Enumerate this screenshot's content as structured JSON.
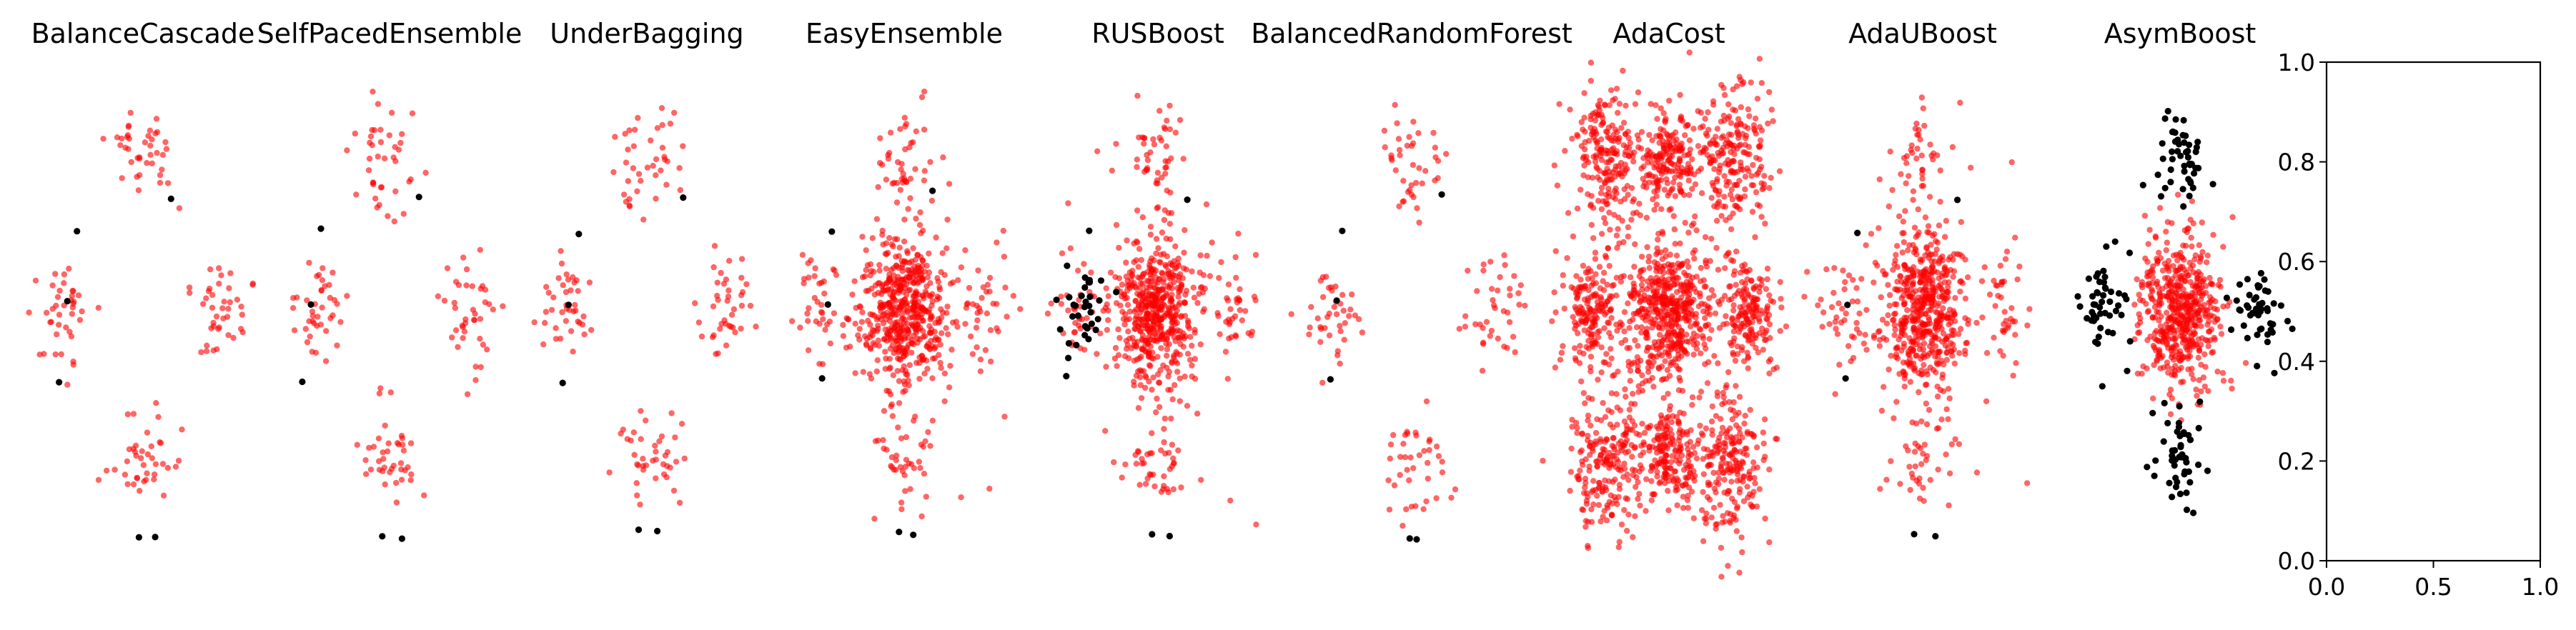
{
  "colors": {
    "kept_samples": "#ff0000",
    "discarded_samples": "#000000",
    "axes": "#000000"
  },
  "chart_data": [
    {
      "type": "scatter",
      "title": "BalanceCascade",
      "panel": 0,
      "seed": 11,
      "red_clusters": [
        "top",
        "left",
        "right",
        "bottom"
      ],
      "black_clusters": [
        "few"
      ],
      "black_scale": 1,
      "dense_center": false,
      "dense_corners": false,
      "stray_points": false
    },
    {
      "type": "scatter",
      "title": "SelfPacedEnsemble",
      "panel": 1,
      "seed": 23,
      "red_clusters": [
        "top",
        "left",
        "right",
        "bottom"
      ],
      "black_clusters": [
        "few"
      ],
      "black_scale": 1,
      "dense_center": false,
      "dense_corners": false,
      "stray_points": false
    },
    {
      "type": "scatter",
      "title": "UnderBagging",
      "panel": 2,
      "seed": 37,
      "red_clusters": [
        "top",
        "left",
        "right",
        "bottom"
      ],
      "black_clusters": [
        "few"
      ],
      "black_scale": 1,
      "dense_center": false,
      "dense_corners": false,
      "stray_points": false
    },
    {
      "type": "scatter",
      "title": "EasyEnsemble",
      "panel": 3,
      "seed": 41,
      "red_clusters": [
        "top",
        "left",
        "right",
        "bottom",
        "center"
      ],
      "black_clusters": [
        "few"
      ],
      "black_scale": 1,
      "dense_center": true,
      "dense_corners": false,
      "stray_points": true
    },
    {
      "type": "scatter",
      "title": "RUSBoost",
      "panel": 4,
      "seed": 53,
      "red_clusters": [
        "top",
        "left",
        "right",
        "bottom",
        "center"
      ],
      "black_clusters": [
        "left",
        "few"
      ],
      "black_scale": 2,
      "dense_center": true,
      "dense_corners": false,
      "stray_points": true
    },
    {
      "type": "scatter",
      "title": "BalancedRandomForest",
      "panel": 5,
      "seed": 67,
      "red_clusters": [
        "top",
        "left",
        "right",
        "bottom"
      ],
      "black_clusters": [
        "few"
      ],
      "black_scale": 1,
      "dense_center": false,
      "dense_corners": false,
      "stray_points": false
    },
    {
      "type": "scatter",
      "title": "AdaCost",
      "panel": 6,
      "seed": 71,
      "red_clusters": [
        "top",
        "left",
        "right",
        "bottom",
        "center"
      ],
      "black_clusters": [],
      "black_scale": 0,
      "dense_center": true,
      "dense_corners": true,
      "stray_points": false
    },
    {
      "type": "scatter",
      "title": "AdaUBoost",
      "panel": 7,
      "seed": 83,
      "red_clusters": [
        "top",
        "left",
        "right",
        "bottom",
        "center"
      ],
      "black_clusters": [
        "few"
      ],
      "black_scale": 1,
      "dense_center": true,
      "dense_corners": false,
      "stray_points": true
    },
    {
      "type": "scatter",
      "title": "AsymBoost",
      "panel": 8,
      "seed": 97,
      "red_clusters": [
        "center"
      ],
      "black_clusters": [
        "top",
        "left",
        "right",
        "bottom"
      ],
      "black_scale": 3,
      "dense_center": true,
      "dense_corners": false,
      "stray_points": false
    },
    {
      "type": "axes",
      "title": "",
      "xlim": [
        0.0,
        1.0
      ],
      "ylim": [
        0.0,
        1.0
      ],
      "x_ticks": [
        "0.0",
        "0.5",
        "1.0"
      ],
      "y_ticks": [
        "0.0",
        "0.2",
        "0.4",
        "0.6",
        "0.8",
        "1.0"
      ],
      "x_tick_values": [
        0.0,
        0.5,
        1.0
      ],
      "y_tick_values": [
        0.0,
        0.2,
        0.4,
        0.6,
        0.8,
        1.0
      ]
    }
  ]
}
